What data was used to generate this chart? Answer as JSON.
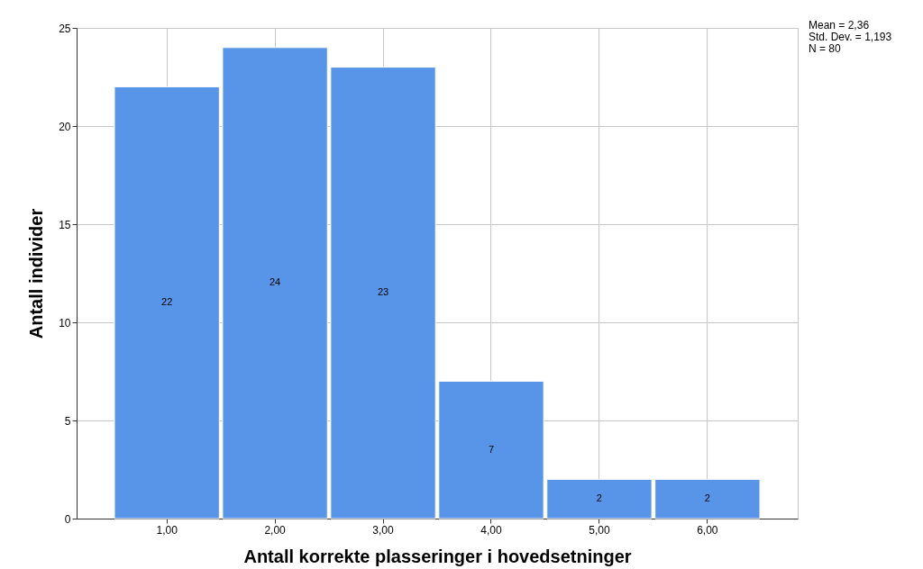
{
  "chart_data": {
    "type": "bar",
    "categories": [
      "1,00",
      "2,00",
      "3,00",
      "4,00",
      "5,00",
      "6,00"
    ],
    "values": [
      22,
      24,
      23,
      7,
      2,
      2
    ],
    "color": "#5894e8",
    "xlabel": "Antall korrekte plasseringer i hovedsetninger",
    "ylabel": "Antall individer",
    "ylim": [
      0,
      25
    ],
    "yticks": [
      0,
      5,
      10,
      15,
      20,
      25
    ],
    "grid": true,
    "data_labels": true,
    "annotations": [
      "Mean = 2,36",
      "Std. Dev. = 1,193",
      "N = 80"
    ]
  }
}
